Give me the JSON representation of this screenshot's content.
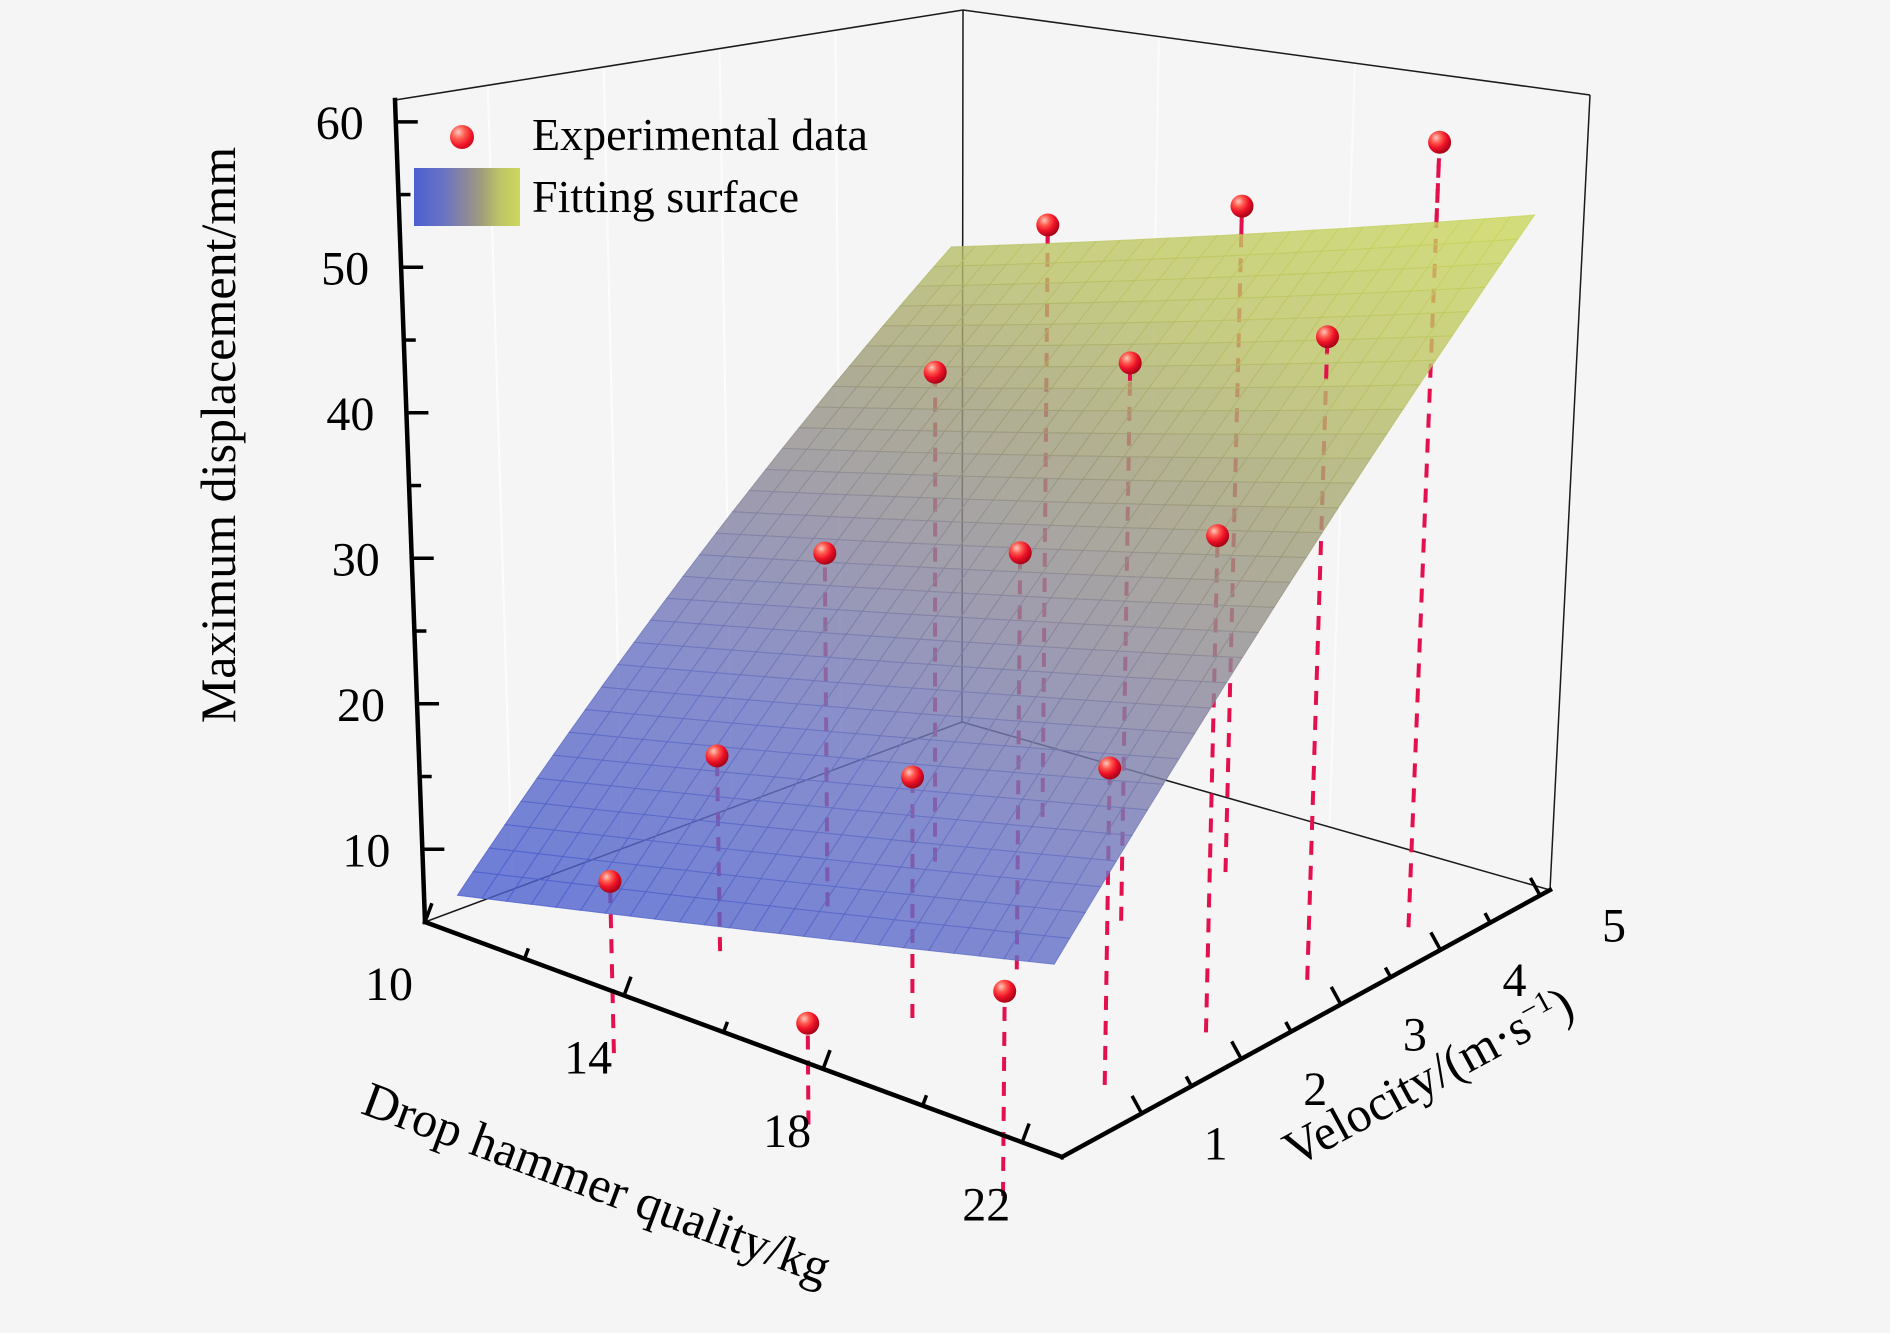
{
  "figure": {
    "background": "#f5f5f5"
  },
  "legend": {
    "items": [
      {
        "label": "Experimental data",
        "marker": "red-sphere-icon"
      },
      {
        "label": "Fitting surface",
        "marker": "gradient-swatch-icon"
      }
    ]
  },
  "axes": {
    "z": {
      "title": "Maximum displacement/mm",
      "ticks": [
        10,
        20,
        30,
        40,
        50,
        60
      ],
      "minor_ticks": [
        15,
        25,
        35,
        45,
        55
      ],
      "range": [
        5,
        61.5
      ]
    },
    "hammer": {
      "title": "Drop hammer quality/kg",
      "ticks": [
        10,
        14,
        18,
        22
      ],
      "minor_ticks": [
        12,
        16,
        20
      ],
      "range": [
        10,
        22.8
      ]
    },
    "velocity": {
      "title": "Velocity/(m·s⁻¹)",
      "ticks": [
        1,
        2,
        3,
        4,
        5
      ],
      "minor_ticks": [
        1.5,
        2.5,
        3.5,
        4.5
      ],
      "range": [
        0.2,
        5.1
      ]
    }
  },
  "chart_data": {
    "type": "scatter",
    "subtype": "3d-scatter-with-fitting-surface",
    "title": "",
    "xlabel": "Drop hammer quality/kg",
    "ylabel": "Velocity/(m·s⁻¹)",
    "zlabel": "Maximum displacement/mm",
    "grid": false,
    "legend_position": "top-left-inside",
    "points": [
      {
        "hammer_kg": 12,
        "velocity_ms": 1,
        "displacement_mm": 8
      },
      {
        "hammer_kg": 12,
        "velocity_ms": 2,
        "displacement_mm": 14
      },
      {
        "hammer_kg": 12,
        "velocity_ms": 3,
        "displacement_mm": 26
      },
      {
        "hammer_kg": 12,
        "velocity_ms": 4,
        "displacement_mm": 37
      },
      {
        "hammer_kg": 12,
        "velocity_ms": 5,
        "displacement_mm": 46
      },
      {
        "hammer_kg": 16,
        "velocity_ms": 1,
        "displacement_mm": 3
      },
      {
        "hammer_kg": 16,
        "velocity_ms": 2,
        "displacement_mm": 17
      },
      {
        "hammer_kg": 16,
        "velocity_ms": 3,
        "displacement_mm": 30
      },
      {
        "hammer_kg": 16,
        "velocity_ms": 4,
        "displacement_mm": 41
      },
      {
        "hammer_kg": 16,
        "velocity_ms": 5,
        "displacement_mm": 50
      },
      {
        "hammer_kg": 20,
        "velocity_ms": 1,
        "displacement_mm": 10
      },
      {
        "hammer_kg": 20,
        "velocity_ms": 2,
        "displacement_mm": 22
      },
      {
        "hammer_kg": 20,
        "velocity_ms": 3,
        "displacement_mm": 35
      },
      {
        "hammer_kg": 20,
        "velocity_ms": 4,
        "displacement_mm": 46
      },
      {
        "hammer_kg": 20,
        "velocity_ms": 5,
        "displacement_mm": 57
      }
    ],
    "surface": {
      "label": "Fitting surface",
      "model": "z = -6.4 + 0.83*hammer + 8.2*velocity",
      "coefficients": {
        "intercept": -6.4,
        "hammer": 0.83,
        "velocity": 8.2
      },
      "domain": {
        "hammer": [
          10,
          22
        ],
        "velocity": [
          0.5,
          5
        ]
      },
      "colormap": [
        [
          0.0,
          "#4a5fd0"
        ],
        [
          0.28,
          "#6a73c4"
        ],
        [
          0.48,
          "#8b879c"
        ],
        [
          0.64,
          "#a09d7a"
        ],
        [
          0.8,
          "#bcc366"
        ],
        [
          1.0,
          "#ccd85c"
        ]
      ],
      "opacity": 0.8
    },
    "colors": {
      "point_fill": "#ee1228",
      "point_highlight": "#ffc9c0",
      "point_shadow": "#9c0014",
      "stem": "#e4104e",
      "axis": "#000000",
      "frame": "#1a1a1a",
      "wall_gridline": "#ffffff"
    }
  }
}
